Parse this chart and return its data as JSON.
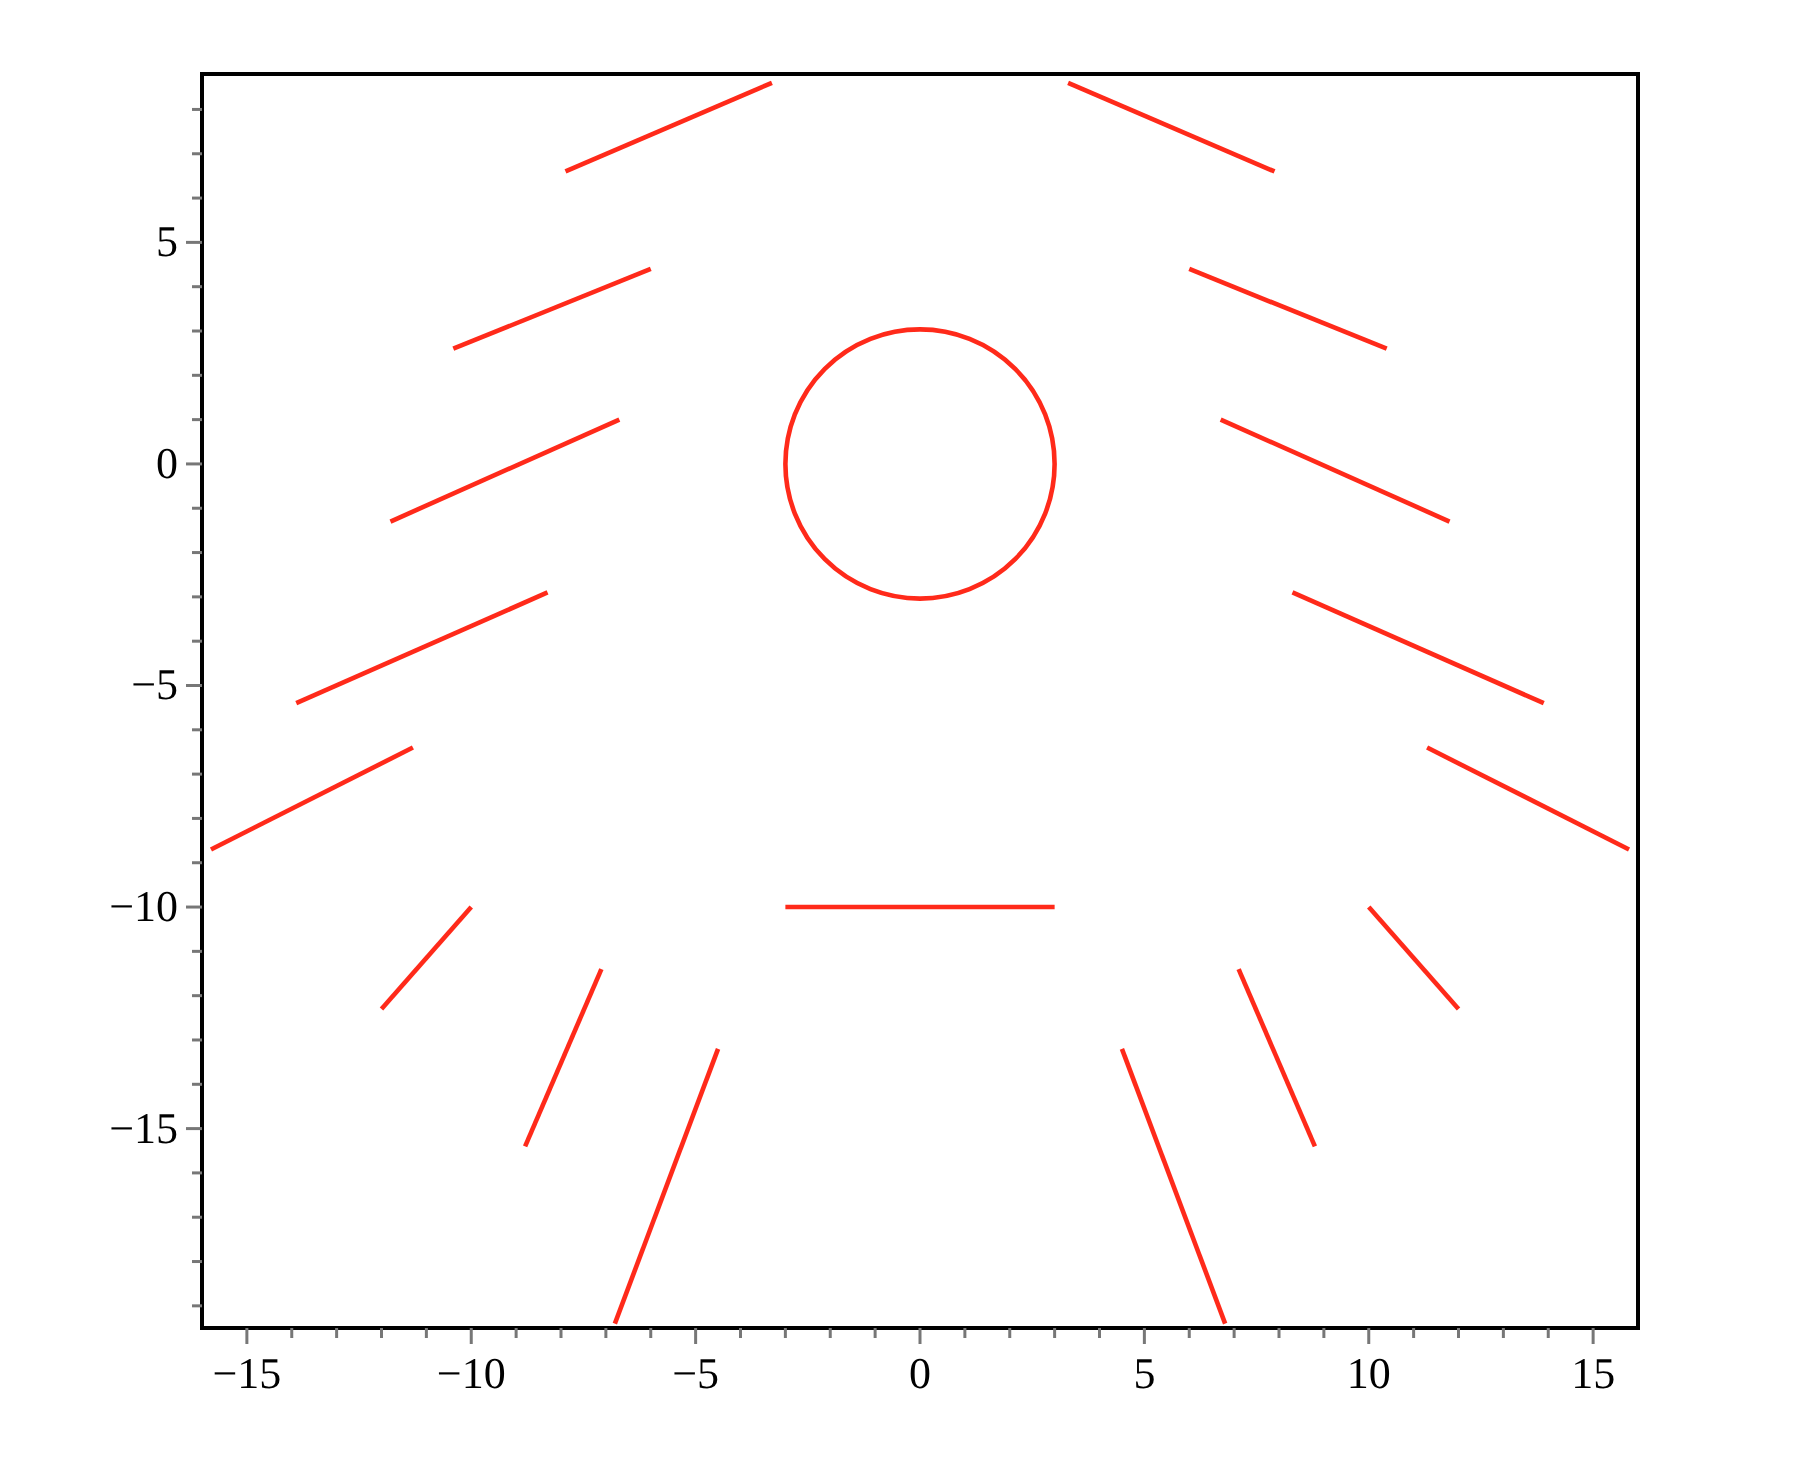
{
  "chart_data": {
    "type": "line",
    "xlim": [
      -16,
      16
    ],
    "ylim": [
      -19.5,
      8.8
    ],
    "xticks": [
      -15,
      {
        "value": -14,
        "label": null
      },
      {
        "value": -13,
        "label": null
      },
      {
        "value": -12,
        "label": null
      },
      {
        "value": -11,
        "label": null
      },
      -10,
      {
        "value": -9,
        "label": null
      },
      {
        "value": -8,
        "label": null
      },
      {
        "value": -7,
        "label": null
      },
      {
        "value": -6,
        "label": null
      },
      -5,
      {
        "value": -4,
        "label": null
      },
      {
        "value": -3,
        "label": null
      },
      {
        "value": -2,
        "label": null
      },
      {
        "value": -1,
        "label": null
      },
      0,
      {
        "value": 1,
        "label": null
      },
      {
        "value": 2,
        "label": null
      },
      {
        "value": 3,
        "label": null
      },
      {
        "value": 4,
        "label": null
      },
      5,
      {
        "value": 6,
        "label": null
      },
      {
        "value": 7,
        "label": null
      },
      {
        "value": 8,
        "label": null
      },
      {
        "value": 9,
        "label": null
      },
      10,
      {
        "value": 11,
        "label": null
      },
      {
        "value": 12,
        "label": null
      },
      {
        "value": 13,
        "label": null
      },
      {
        "value": 14,
        "label": null
      },
      15
    ],
    "yticks": [
      {
        "value": -19,
        "label": null
      },
      {
        "value": -18,
        "label": null
      },
      {
        "value": -17,
        "label": null
      },
      {
        "value": -16,
        "label": null
      },
      -15,
      {
        "value": -14,
        "label": null
      },
      {
        "value": -13,
        "label": null
      },
      {
        "value": -12,
        "label": null
      },
      {
        "value": -11,
        "label": null
      },
      -10,
      {
        "value": -9,
        "label": null
      },
      {
        "value": -8,
        "label": null
      },
      {
        "value": -7,
        "label": null
      },
      {
        "value": -6,
        "label": null
      },
      -5,
      {
        "value": -4,
        "label": null
      },
      {
        "value": -3,
        "label": null
      },
      {
        "value": -2,
        "label": null
      },
      {
        "value": -1,
        "label": null
      },
      0,
      {
        "value": 1,
        "label": null
      },
      {
        "value": 2,
        "label": null
      },
      {
        "value": 3,
        "label": null
      },
      {
        "value": 4,
        "label": null
      },
      5,
      {
        "value": 6,
        "label": null
      },
      {
        "value": 7,
        "label": null
      },
      {
        "value": 8,
        "label": null
      }
    ],
    "grid": false,
    "marker": "none",
    "line_style": "solid",
    "series": [
      {
        "color": "#ff2a1a",
        "x": [
          -7.9,
          -3.3
        ],
        "values": [
          6.6,
          8.6
        ]
      },
      {
        "color": "#ff2a1a",
        "x": [
          -10.4,
          -6.0
        ],
        "values": [
          2.6,
          4.4
        ]
      },
      {
        "color": "#ff2a1a",
        "x": [
          -11.8,
          -6.7
        ],
        "values": [
          -1.3,
          1.0
        ]
      },
      {
        "color": "#ff2a1a",
        "x": [
          -13.9,
          -8.3
        ],
        "values": [
          -5.4,
          -2.9
        ]
      },
      {
        "color": "#ff2a1a",
        "x": [
          -15.8,
          -11.3
        ],
        "values": [
          -8.7,
          -6.4
        ]
      },
      {
        "color": "#ff2a1a",
        "x": [
          -12.0,
          -10.0
        ],
        "values": [
          -12.3,
          -10.0
        ]
      },
      {
        "color": "#ff2a1a",
        "x": [
          -8.8,
          -7.1
        ],
        "values": [
          -15.4,
          -11.4
        ]
      },
      {
        "color": "#ff2a1a",
        "x": [
          -6.8,
          -4.5
        ],
        "values": [
          -19.4,
          -13.2
        ]
      },
      {
        "color": "#ff2a1a",
        "x": [
          3.3,
          7.9
        ],
        "values": [
          8.6,
          6.6
        ]
      },
      {
        "color": "#ff2a1a",
        "x": [
          6.0,
          10.4
        ],
        "values": [
          4.4,
          2.6
        ]
      },
      {
        "color": "#ff2a1a",
        "x": [
          6.7,
          11.8
        ],
        "values": [
          1.0,
          -1.3
        ]
      },
      {
        "color": "#ff2a1a",
        "x": [
          8.3,
          13.9
        ],
        "values": [
          -2.9,
          -5.4
        ]
      },
      {
        "color": "#ff2a1a",
        "x": [
          11.3,
          15.8
        ],
        "values": [
          -6.4,
          -8.7
        ]
      },
      {
        "color": "#ff2a1a",
        "x": [
          10.0,
          12.0
        ],
        "values": [
          -10.0,
          -12.3
        ]
      },
      {
        "color": "#ff2a1a",
        "x": [
          7.1,
          8.8
        ],
        "values": [
          -11.4,
          -15.4
        ]
      },
      {
        "color": "#ff2a1a",
        "x": [
          4.5,
          6.8
        ],
        "values": [
          -13.2,
          -19.4
        ]
      },
      {
        "color": "#ff2a1a",
        "x": [
          -3,
          3
        ],
        "values": [
          -10,
          -10
        ]
      }
    ]
  }
}
